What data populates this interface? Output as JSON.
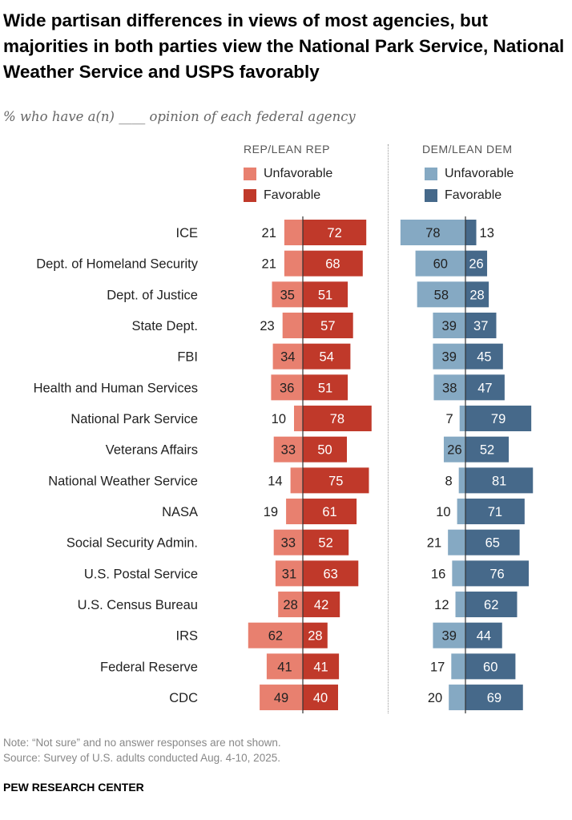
{
  "title": "Wide partisan differences in views of most agencies, but majorities in both parties view the National Park Service, National Weather Service and USPS favorably",
  "subtitle": "% who have a(n) ____ opinion of each federal agency",
  "colors": {
    "rep_unfav": "#E8806F",
    "rep_fav": "#C0392A",
    "dem_unfav": "#85A9C3",
    "dem_fav": "#46698A"
  },
  "chart_data": {
    "type": "bar",
    "orientation": "horizontal-diverging",
    "groups": [
      {
        "name": "REP/LEAN REP",
        "legend": [
          "Unfavorable",
          "Favorable"
        ]
      },
      {
        "name": "DEM/LEAN DEM",
        "legend": [
          "Unfavorable",
          "Favorable"
        ]
      }
    ],
    "categories": [
      "ICE",
      "Dept. of Homeland Security",
      "Dept. of Justice",
      "State Dept.",
      "FBI",
      "Health and Human Services",
      "National Park Service",
      "Veterans Affairs",
      "National Weather Service",
      "NASA",
      "Social Security Admin.",
      "U.S. Postal Service",
      "U.S. Census Bureau",
      "IRS",
      "Federal Reserve",
      "CDC"
    ],
    "series": [
      {
        "name": "Rep Unfavorable",
        "values": [
          21,
          21,
          35,
          23,
          34,
          36,
          10,
          33,
          14,
          19,
          33,
          31,
          28,
          62,
          41,
          49
        ]
      },
      {
        "name": "Rep Favorable",
        "values": [
          72,
          68,
          51,
          57,
          54,
          51,
          78,
          50,
          75,
          61,
          52,
          63,
          42,
          28,
          41,
          40
        ]
      },
      {
        "name": "Dem Unfavorable",
        "values": [
          78,
          60,
          58,
          39,
          39,
          38,
          7,
          26,
          8,
          10,
          21,
          16,
          12,
          39,
          17,
          20
        ]
      },
      {
        "name": "Dem Favorable",
        "values": [
          13,
          26,
          28,
          37,
          45,
          47,
          79,
          52,
          81,
          71,
          65,
          76,
          62,
          44,
          60,
          69
        ]
      }
    ]
  },
  "footer": {
    "note": "Note: “Not sure” and no answer responses are not shown.",
    "source": "Source: Survey of U.S. adults conducted Aug. 4-10, 2025.",
    "brand": "PEW RESEARCH CENTER"
  }
}
